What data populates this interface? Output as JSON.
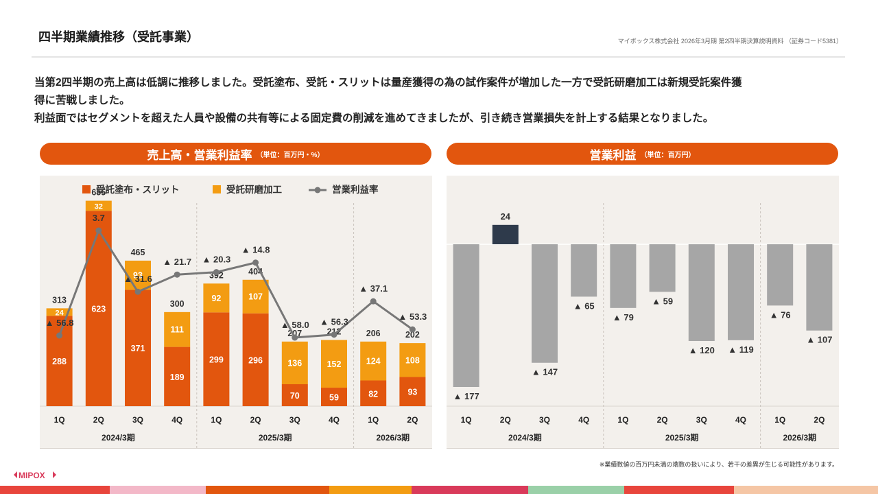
{
  "header": {
    "title": "四半期業績推移（受託事業）",
    "source": "マイボックス株式会社 2026年3月期 第2四半期決算説明資料 （証券コード5381）"
  },
  "summary": [
    "当第2四半期の売上高は低調に推移しました。受託塗布、受託・スリットは量産獲得の為の試作案件が増加した一方で受託研磨加工は新規受託案件獲",
    "得に苦戦しました。",
    "利益面ではセグメントを超えた人員や設備の共有等による固定費の削減を進めてきましたが、引き続き営業損失を計上する結果となりました。"
  ],
  "panels": {
    "left": {
      "title": "売上高・営業利益率",
      "unit": "（単位：百万円・%）"
    },
    "right": {
      "title": "営業利益",
      "unit": "（単位：百万円）"
    }
  },
  "footnote": "※業績数値の百万円未満の端数の扱いにより、若干の差異が生じる可能性があります。",
  "logo": "MIPOX",
  "colors": {
    "coating": "#e2560e",
    "polishing": "#f39c12",
    "margin_line": "#777777",
    "loss_bar": "#a6a6a6",
    "profit_bar": "#2e3a4b",
    "chart_bg": "#f3f0ec",
    "header_bg": "#e2560e"
  },
  "chart_data": [
    {
      "type": "bar",
      "stacked": true,
      "title": "売上高・営業利益率",
      "unit": "（単位：百万円・%）",
      "categories": [
        "1Q",
        "2Q",
        "3Q",
        "4Q",
        "1Q",
        "2Q",
        "3Q",
        "4Q",
        "1Q",
        "2Q"
      ],
      "periods": [
        {
          "label": "2024/3期",
          "count": 4
        },
        {
          "label": "2025/3期",
          "count": 4
        },
        {
          "label": "2026/3期",
          "count": 2
        }
      ],
      "legend": [
        "受託塗布・スリット",
        "受託研磨加工",
        "営業利益率"
      ],
      "series": [
        {
          "name": "受託塗布・スリット",
          "values": [
            288,
            623,
            371,
            189,
            299,
            296,
            70,
            59,
            82,
            93
          ]
        },
        {
          "name": "受託研磨加工",
          "values": [
            24,
            32,
            93,
            111,
            92,
            107,
            136,
            152,
            124,
            108
          ]
        }
      ],
      "totals": [
        313,
        655,
        465,
        300,
        392,
        404,
        207,
        212,
        206,
        202
      ],
      "margin": {
        "name": "営業利益率",
        "values": [
          -56.8,
          3.7,
          -31.6,
          -21.7,
          -20.3,
          -14.8,
          -58.0,
          -56.3,
          -37.1,
          -53.3
        ],
        "labels": [
          "▲ 56.8",
          "3.7",
          "▲ 31.6",
          "▲ 21.7",
          "▲ 20.3",
          "▲ 14.8",
          "▲ 58.0",
          "▲ 56.3",
          "▲ 37.1",
          "▲ 53.3"
        ],
        "label_values": [
          "-56.8",
          "3.7",
          "-31.6",
          "-21.7",
          "-20.3",
          "-14.8",
          "-58.0",
          "-56.3",
          "-37.1",
          "-53.3"
        ]
      },
      "ylim": [
        0,
        700
      ]
    },
    {
      "type": "bar",
      "title": "営業利益",
      "unit": "（単位：百万円）",
      "categories": [
        "1Q",
        "2Q",
        "3Q",
        "4Q",
        "1Q",
        "2Q",
        "3Q",
        "4Q",
        "1Q",
        "2Q"
      ],
      "periods": [
        {
          "label": "2024/3期",
          "count": 4
        },
        {
          "label": "2025/3期",
          "count": 4
        },
        {
          "label": "2026/3期",
          "count": 2
        }
      ],
      "values": [
        -177,
        24,
        -147,
        -65,
        -79,
        -59,
        -120,
        -119,
        -76,
        -107
      ],
      "labels": [
        "▲ 177",
        "24",
        "▲ 147",
        "▲ 65",
        "▲ 79",
        "▲ 59",
        "▲ 120",
        "▲ 119",
        "▲ 76",
        "▲ 107"
      ],
      "ylim": [
        -180,
        30
      ]
    }
  ]
}
